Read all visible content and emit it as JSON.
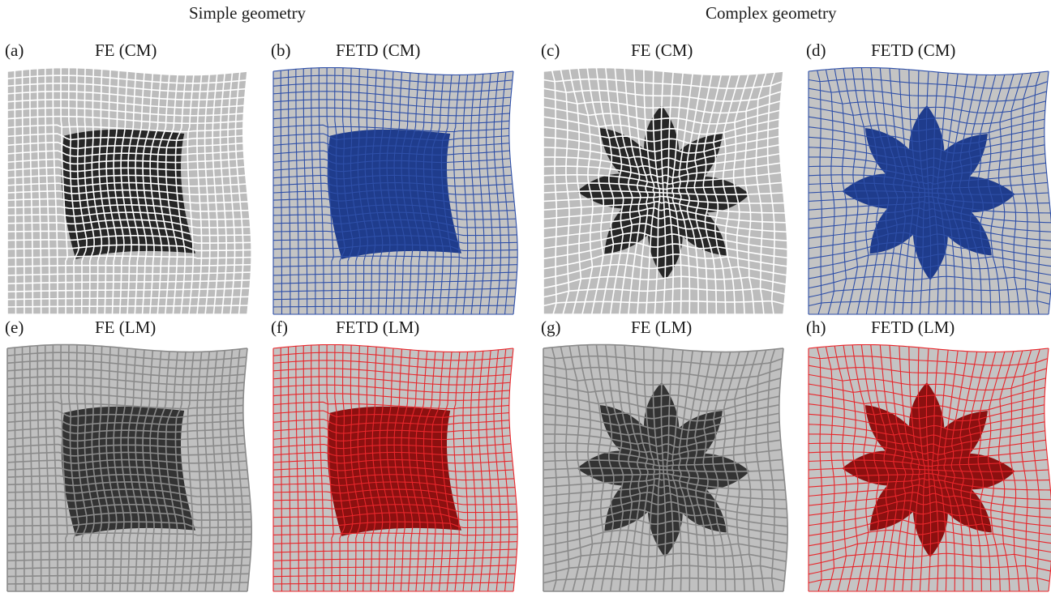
{
  "group_titles": {
    "simple": "Simple geometry",
    "complex": "Complex geometry"
  },
  "panels": [
    {
      "letter": "(a)",
      "title": "FE (CM)",
      "geometry": "square",
      "style": "fe-cm",
      "colors": {
        "face": "#bcbcbc",
        "line": "#ffffff",
        "inner": "#262626"
      }
    },
    {
      "letter": "(b)",
      "title": "FETD (CM)",
      "geometry": "square",
      "style": "fetd-cm",
      "colors": {
        "face": "#c4c4c4",
        "line": "#2e4fa8",
        "inner": "#1f3c8c"
      }
    },
    {
      "letter": "(c)",
      "title": "FE (CM)",
      "geometry": "star",
      "style": "fe-cm",
      "colors": {
        "face": "#bcbcbc",
        "line": "#ffffff",
        "inner": "#262626"
      }
    },
    {
      "letter": "(d)",
      "title": "FETD (CM)",
      "geometry": "star",
      "style": "fetd-cm",
      "colors": {
        "face": "#c4c4c4",
        "line": "#2e4fa8",
        "inner": "#1f3c8c"
      }
    },
    {
      "letter": "(e)",
      "title": "FE (LM)",
      "geometry": "square",
      "style": "fe-lm",
      "colors": {
        "face": "#c0c0c0",
        "line": "#8a8a8a",
        "inner": "#333333"
      }
    },
    {
      "letter": "(f)",
      "title": "FETD (LM)",
      "geometry": "square",
      "style": "fetd-lm",
      "colors": {
        "face": "#c4c4c4",
        "line": "#e8262b",
        "inner": "#8c1010"
      }
    },
    {
      "letter": "(g)",
      "title": "FE (LM)",
      "geometry": "star",
      "style": "fe-lm",
      "colors": {
        "face": "#c0c0c0",
        "line": "#8a8a8a",
        "inner": "#333333"
      }
    },
    {
      "letter": "(h)",
      "title": "FETD (LM)",
      "geometry": "star",
      "style": "fetd-lm",
      "colors": {
        "face": "#c4c4c4",
        "line": "#e8262b",
        "inner": "#8c1010"
      }
    }
  ]
}
